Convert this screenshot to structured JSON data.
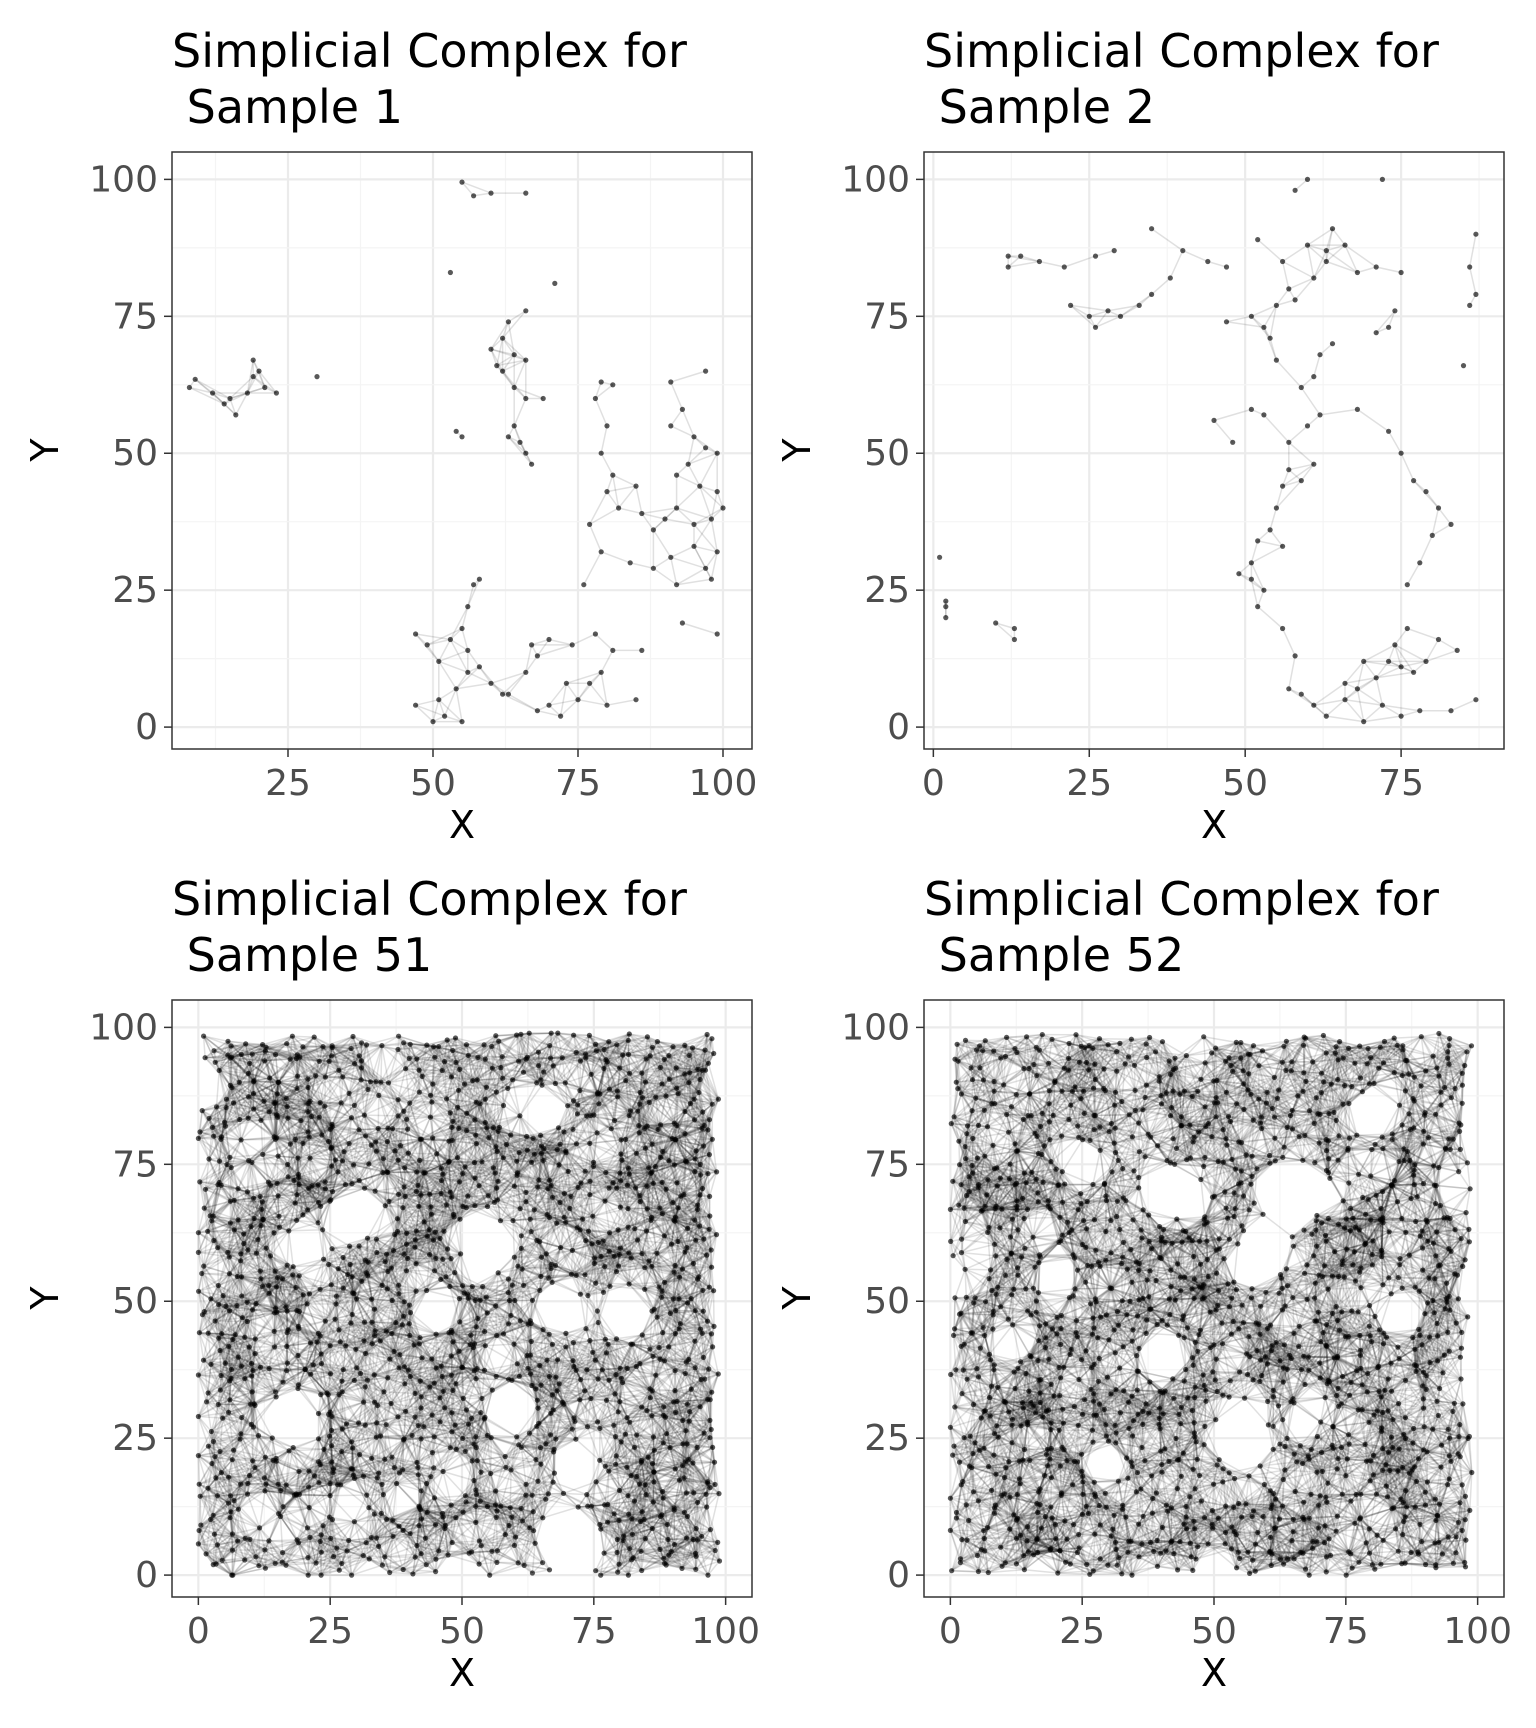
{
  "chart_data": [
    {
      "type": "scatter",
      "title": [
        "Simplicial Complex for",
        " Sample 1"
      ],
      "xlabel": "X",
      "ylabel": "Y",
      "xlim": [
        5,
        105
      ],
      "ylim": [
        -4,
        105
      ],
      "xticks": [
        25,
        50,
        75,
        100
      ],
      "yticks": [
        0,
        25,
        50,
        75,
        100
      ],
      "grid": true,
      "edge_radius": 7,
      "points": [
        [
          55,
          99.5
        ],
        [
          57,
          97
        ],
        [
          60,
          97.5
        ],
        [
          66,
          97.5
        ],
        [
          53,
          83
        ],
        [
          71,
          81
        ],
        [
          66,
          76
        ],
        [
          63,
          74
        ],
        [
          62,
          71
        ],
        [
          60,
          69
        ],
        [
          61,
          66
        ],
        [
          64,
          68
        ],
        [
          66,
          67
        ],
        [
          62,
          65
        ],
        [
          64,
          62
        ],
        [
          66,
          60
        ],
        [
          69,
          60
        ],
        [
          64,
          55
        ],
        [
          65,
          52
        ],
        [
          63,
          53
        ],
        [
          66,
          50
        ],
        [
          67,
          48
        ],
        [
          54,
          54
        ],
        [
          55,
          53
        ],
        [
          8,
          62
        ],
        [
          9,
          63.5
        ],
        [
          12,
          61
        ],
        [
          14,
          59
        ],
        [
          15,
          60
        ],
        [
          16,
          57
        ],
        [
          18,
          61
        ],
        [
          19,
          64
        ],
        [
          20,
          65
        ],
        [
          19,
          67
        ],
        [
          21,
          62
        ],
        [
          23,
          61
        ],
        [
          30,
          64
        ],
        [
          79,
          63
        ],
        [
          81,
          62.5
        ],
        [
          78,
          60
        ],
        [
          91,
          63
        ],
        [
          97,
          65
        ],
        [
          93,
          58
        ],
        [
          91,
          55
        ],
        [
          95,
          53
        ],
        [
          97,
          51
        ],
        [
          99,
          50
        ],
        [
          94,
          48
        ],
        [
          92,
          46
        ],
        [
          96,
          44
        ],
        [
          99,
          43
        ],
        [
          100,
          40
        ],
        [
          98,
          38
        ],
        [
          95,
          37
        ],
        [
          92,
          40
        ],
        [
          90,
          38
        ],
        [
          88,
          36
        ],
        [
          86,
          39
        ],
        [
          85,
          44
        ],
        [
          80,
          55
        ],
        [
          79,
          50
        ],
        [
          81,
          46
        ],
        [
          80,
          43
        ],
        [
          82,
          40
        ],
        [
          77,
          37
        ],
        [
          79,
          32
        ],
        [
          84,
          30
        ],
        [
          88,
          29
        ],
        [
          91,
          31
        ],
        [
          95,
          33
        ],
        [
          99,
          32
        ],
        [
          97,
          29
        ],
        [
          98,
          27
        ],
        [
          92,
          26
        ],
        [
          76,
          26
        ],
        [
          86,
          14
        ],
        [
          93,
          19
        ],
        [
          99,
          17
        ],
        [
          47,
          17
        ],
        [
          49,
          15
        ],
        [
          51,
          12
        ],
        [
          53,
          16
        ],
        [
          55,
          18
        ],
        [
          56,
          14
        ],
        [
          58,
          11
        ],
        [
          56,
          22
        ],
        [
          57,
          26
        ],
        [
          58,
          27
        ],
        [
          56,
          10
        ],
        [
          54,
          7
        ],
        [
          51,
          5
        ],
        [
          52,
          2
        ],
        [
          55,
          1
        ],
        [
          47,
          4
        ],
        [
          50,
          1
        ],
        [
          60,
          8
        ],
        [
          62,
          6
        ],
        [
          66,
          10
        ],
        [
          67,
          15
        ],
        [
          70,
          16
        ],
        [
          74,
          15
        ],
        [
          78,
          17
        ],
        [
          81,
          14
        ],
        [
          79,
          10
        ],
        [
          77,
          8
        ],
        [
          73,
          8
        ],
        [
          70,
          4
        ],
        [
          68,
          3
        ],
        [
          72,
          2
        ],
        [
          75,
          5
        ],
        [
          80,
          4
        ],
        [
          85,
          5
        ],
        [
          63,
          6
        ],
        [
          68,
          13
        ]
      ]
    },
    {
      "type": "scatter",
      "title": [
        "Simplicial Complex for",
        " Sample 2"
      ],
      "xlabel": "X",
      "ylabel": "Y",
      "xlim": [
        -1.5,
        91.5
      ],
      "ylim": [
        -4,
        105
      ],
      "xticks": [
        0,
        25,
        50,
        75
      ],
      "yticks": [
        0,
        25,
        50,
        75,
        100
      ],
      "grid": true,
      "edge_radius": 6.5,
      "points": [
        [
          1,
          31
        ],
        [
          2,
          22
        ],
        [
          2,
          23
        ],
        [
          2,
          20
        ],
        [
          10,
          19
        ],
        [
          13,
          18
        ],
        [
          13,
          16
        ],
        [
          58,
          98
        ],
        [
          60,
          100
        ],
        [
          72,
          100
        ],
        [
          12,
          86
        ],
        [
          12,
          84
        ],
        [
          14,
          86
        ],
        [
          17,
          85
        ],
        [
          21,
          84
        ],
        [
          26,
          86
        ],
        [
          29,
          87
        ],
        [
          26,
          73
        ],
        [
          25,
          75
        ],
        [
          22,
          77
        ],
        [
          28,
          76
        ],
        [
          30,
          75
        ],
        [
          33,
          77
        ],
        [
          35,
          79
        ],
        [
          38,
          82
        ],
        [
          35,
          91
        ],
        [
          40,
          87
        ],
        [
          44,
          85
        ],
        [
          47,
          84
        ],
        [
          52,
          89
        ],
        [
          56,
          85
        ],
        [
          60,
          88
        ],
        [
          63,
          87
        ],
        [
          64,
          91
        ],
        [
          68,
          83
        ],
        [
          71,
          84
        ],
        [
          75,
          83
        ],
        [
          74,
          76
        ],
        [
          73,
          73
        ],
        [
          71,
          72
        ],
        [
          64,
          70
        ],
        [
          62,
          68
        ],
        [
          61,
          64
        ],
        [
          59,
          62
        ],
        [
          55,
          67
        ],
        [
          54,
          71
        ],
        [
          53,
          73
        ],
        [
          55,
          77
        ],
        [
          58,
          78
        ],
        [
          57,
          80
        ],
        [
          61,
          82
        ],
        [
          63,
          85
        ],
        [
          66,
          88
        ],
        [
          51,
          75
        ],
        [
          47,
          74
        ],
        [
          45,
          56
        ],
        [
          48,
          52
        ],
        [
          51,
          58
        ],
        [
          53,
          57
        ],
        [
          57,
          52
        ],
        [
          60,
          55
        ],
        [
          62,
          57
        ],
        [
          61,
          48
        ],
        [
          59,
          45
        ],
        [
          57,
          47
        ],
        [
          56,
          44
        ],
        [
          55,
          40
        ],
        [
          56,
          33
        ],
        [
          54,
          36
        ],
        [
          52,
          34
        ],
        [
          51,
          30
        ],
        [
          49,
          28
        ],
        [
          53,
          25
        ],
        [
          51,
          27
        ],
        [
          52,
          22
        ],
        [
          56,
          18
        ],
        [
          58,
          13
        ],
        [
          57,
          7
        ],
        [
          59,
          6
        ],
        [
          61,
          4
        ],
        [
          63,
          2
        ],
        [
          66,
          5
        ],
        [
          68,
          7
        ],
        [
          71,
          9
        ],
        [
          73,
          12
        ],
        [
          75,
          11
        ],
        [
          77,
          10
        ],
        [
          79,
          12
        ],
        [
          81,
          16
        ],
        [
          84,
          14
        ],
        [
          87,
          5
        ],
        [
          83,
          3
        ],
        [
          78,
          3
        ],
        [
          75,
          2
        ],
        [
          72,
          4
        ],
        [
          69,
          1
        ],
        [
          66,
          8
        ],
        [
          69,
          12
        ],
        [
          74,
          15
        ],
        [
          76,
          18
        ],
        [
          76,
          26
        ],
        [
          78,
          30
        ],
        [
          80,
          35
        ],
        [
          83,
          37
        ],
        [
          81,
          40
        ],
        [
          79,
          43
        ],
        [
          77,
          45
        ],
        [
          75,
          50
        ],
        [
          73,
          54
        ],
        [
          68,
          58
        ],
        [
          86,
          84
        ],
        [
          87,
          90
        ],
        [
          87,
          79
        ],
        [
          86,
          77
        ],
        [
          85,
          66
        ]
      ]
    },
    {
      "type": "scatter",
      "title": [
        "Simplicial Complex for",
        " Sample 51"
      ],
      "xlabel": "X",
      "ylabel": "Y",
      "xlim": [
        -5,
        105
      ],
      "ylim": [
        -4,
        105
      ],
      "xticks": [
        0,
        25,
        50,
        75,
        100
      ],
      "yticks": [
        0,
        25,
        50,
        75,
        100
      ],
      "grid": true,
      "edge_radius": 7,
      "dense_grid": {
        "x": [
          0,
          100
        ],
        "y": [
          0,
          100
        ],
        "step": 2.1,
        "jitter_seed": 51
      },
      "voids": [
        [
          70,
          6,
          6
        ],
        [
          72,
          20,
          4
        ],
        [
          60,
          30,
          4
        ],
        [
          57,
          40,
          3
        ],
        [
          55,
          60,
          5
        ],
        [
          20,
          60,
          4
        ],
        [
          30,
          65,
          4
        ],
        [
          45,
          48,
          4
        ],
        [
          68,
          48,
          4
        ],
        [
          81,
          48,
          5
        ],
        [
          18,
          30,
          4
        ],
        [
          65,
          85,
          4
        ],
        [
          28,
          13,
          3
        ],
        [
          35,
          93,
          3
        ],
        [
          11,
          12,
          3
        ]
      ]
    },
    {
      "type": "scatter",
      "title": [
        "Simplicial Complex for",
        " Sample 52"
      ],
      "xlabel": "X",
      "ylabel": "Y",
      "xlim": [
        -5,
        105
      ],
      "ylim": [
        -4,
        105
      ],
      "xticks": [
        0,
        25,
        50,
        75,
        100
      ],
      "yticks": [
        0,
        25,
        50,
        75,
        100
      ],
      "grid": true,
      "edge_radius": 7,
      "dense_grid": {
        "x": [
          0,
          100
        ],
        "y": [
          0,
          100
        ],
        "step": 2.1,
        "jitter_seed": 52
      },
      "voids": [
        [
          55,
          25,
          5
        ],
        [
          65,
          70,
          6
        ],
        [
          60,
          60,
          5
        ],
        [
          42,
          70,
          5
        ],
        [
          25,
          75,
          4
        ],
        [
          5,
          60,
          3
        ],
        [
          85,
          47,
          4
        ],
        [
          80,
          84,
          4
        ],
        [
          40,
          40,
          4
        ],
        [
          68,
          30,
          3
        ],
        [
          30,
          20,
          3
        ],
        [
          12,
          42,
          3
        ],
        [
          95,
          70,
          3
        ],
        [
          20,
          55,
          3
        ]
      ]
    }
  ]
}
